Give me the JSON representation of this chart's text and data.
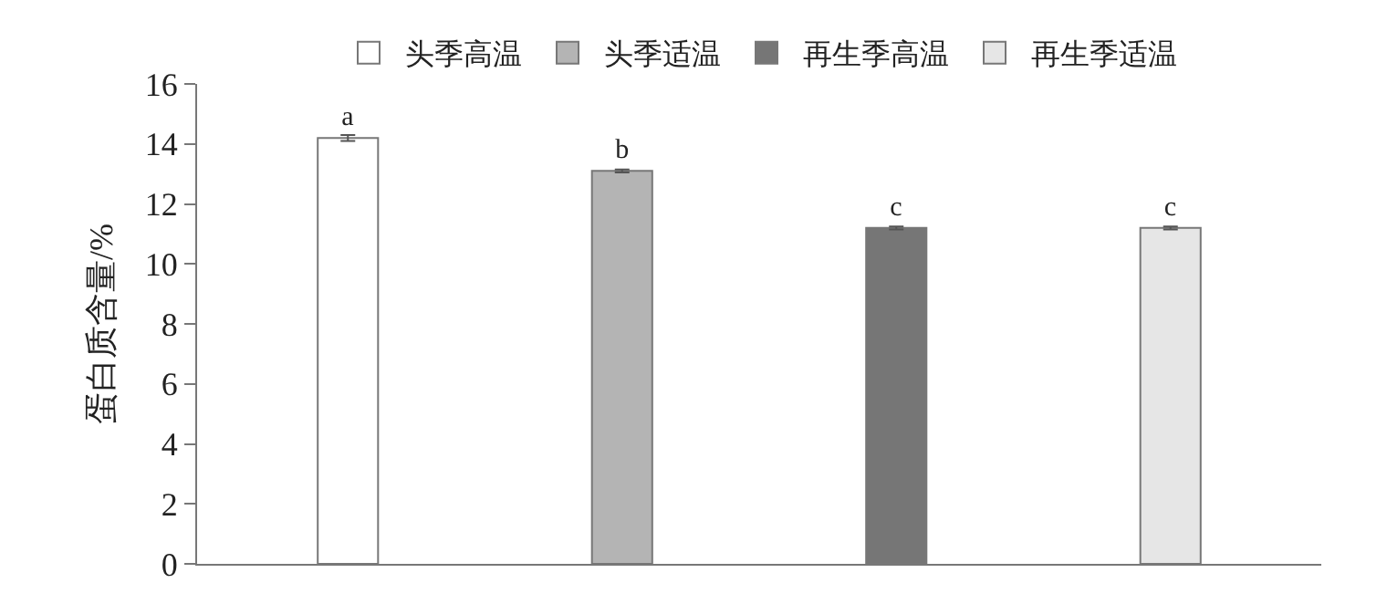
{
  "chart_data": {
    "type": "bar",
    "ylabel": "蛋白质含量/%",
    "categories": [
      null,
      null,
      null,
      null
    ],
    "series": [
      {
        "name": "头季高温",
        "color": "#ffffff",
        "values": [
          14.2,
          null,
          null,
          null
        ],
        "errors": [
          0.1,
          null,
          null,
          null
        ],
        "value_labels": [
          "a",
          null,
          null,
          null
        ]
      },
      {
        "name": "头季适温",
        "color": "#b4b4b4",
        "values": [
          null,
          13.1,
          null,
          null
        ],
        "errors": [
          null,
          0.05,
          null,
          null
        ],
        "value_labels": [
          null,
          "b",
          null,
          null
        ]
      },
      {
        "name": "再生季高温",
        "color": "#767676",
        "values": [
          null,
          null,
          11.2,
          null
        ],
        "errors": [
          null,
          null,
          0.05,
          null
        ],
        "value_labels": [
          null,
          null,
          "c",
          null
        ]
      },
      {
        "name": "再生季适温",
        "color": "#e6e6e6",
        "values": [
          null,
          null,
          null,
          11.2
        ],
        "errors": [
          null,
          null,
          null,
          0.05
        ],
        "value_labels": [
          null,
          null,
          null,
          "c"
        ]
      }
    ],
    "ylim": [
      0,
      16
    ],
    "yticks": [
      0,
      2,
      4,
      6,
      8,
      10,
      12,
      14,
      16
    ],
    "legend": "top"
  }
}
